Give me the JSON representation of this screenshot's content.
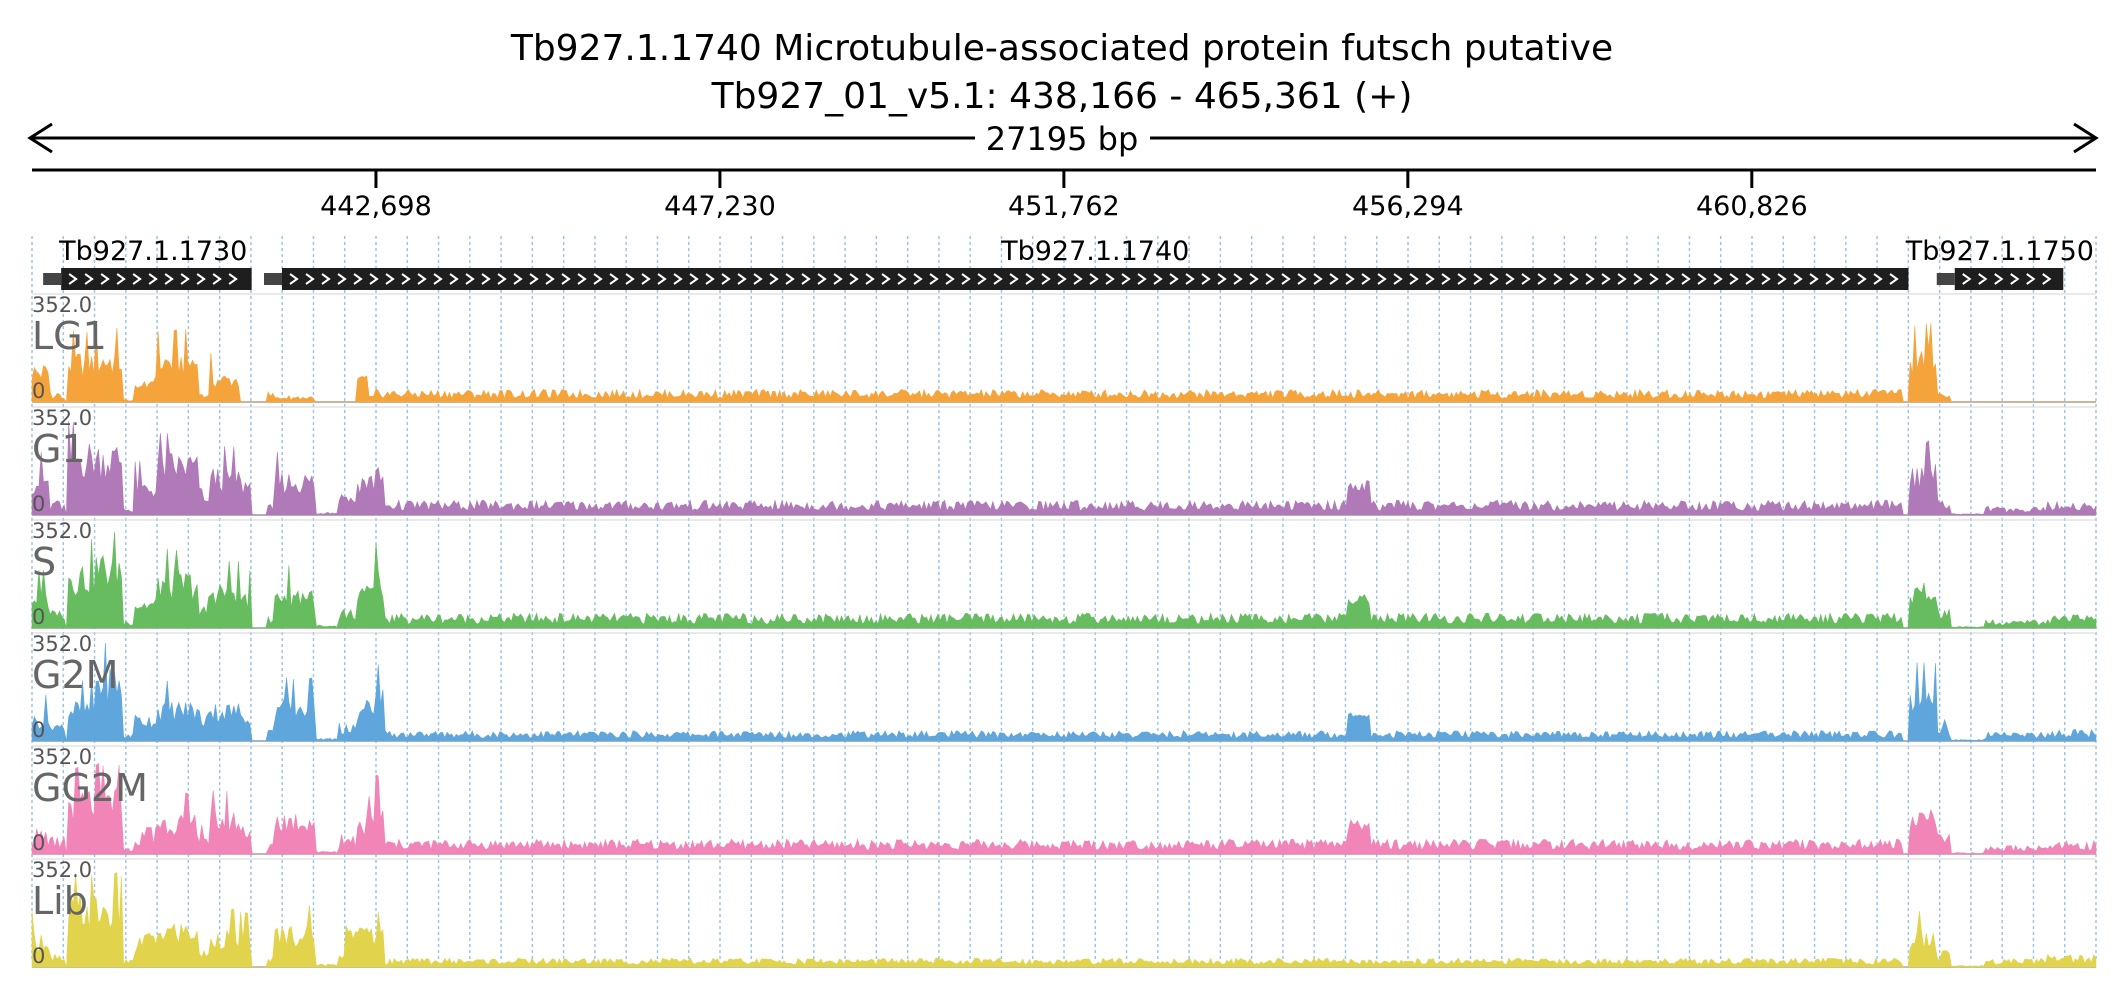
{
  "header": {
    "title": "Tb927.1.1740  Microtubule-associated protein futsch  putative",
    "location": "Tb927_01_v5.1: 438,166 - 465,361 (+)",
    "span_label": "27195 bp"
  },
  "chart_data": {
    "type": "area",
    "x_range": [
      438166,
      465361
    ],
    "strand": "+",
    "ticks": [
      {
        "value": 442698,
        "label": "442,698"
      },
      {
        "value": 447230,
        "label": "447,230"
      },
      {
        "value": 451762,
        "label": "451,762"
      },
      {
        "value": 456294,
        "label": "456,294"
      },
      {
        "value": 460826,
        "label": "460,826"
      }
    ],
    "genes": [
      {
        "name": "Tb927.1.1730",
        "start": 438550,
        "end": 441060,
        "label_anchor": "start"
      },
      {
        "name": "Tb927.1.1740",
        "start": 441460,
        "end": 462890,
        "label_anchor": "middle"
      },
      {
        "name": "Tb927.1.1750",
        "start": 463500,
        "end": 464930,
        "label_anchor": "end"
      }
    ],
    "track_scale": {
      "max_label": "352.0",
      "min_label": "0",
      "ylim": [
        0,
        352
      ]
    },
    "profile_regions": [
      {
        "start": 438166,
        "end": 438400,
        "level": 0.45
      },
      {
        "start": 438400,
        "end": 438600,
        "level": 0.12
      },
      {
        "start": 438620,
        "end": 439000,
        "level": 0.7
      },
      {
        "start": 439000,
        "end": 439350,
        "level": 0.8
      },
      {
        "start": 439350,
        "end": 439500,
        "level": 0.05
      },
      {
        "start": 439500,
        "end": 439800,
        "level": 0.35
      },
      {
        "start": 439800,
        "end": 440350,
        "level": 0.6
      },
      {
        "start": 440350,
        "end": 440500,
        "level": 0.22
      },
      {
        "start": 440500,
        "end": 440900,
        "level": 0.5
      },
      {
        "start": 440900,
        "end": 441050,
        "level": 0.4
      },
      {
        "start": 441250,
        "end": 441350,
        "level": 0.08
      },
      {
        "start": 441350,
        "end": 441900,
        "level": 0.45
      },
      {
        "start": 441900,
        "end": 442200,
        "level": 0.02
      },
      {
        "start": 442200,
        "end": 442450,
        "level": 0.15
      },
      {
        "start": 442450,
        "end": 442680,
        "level": 0.45
      },
      {
        "start": 442680,
        "end": 442800,
        "level": 0.6
      },
      {
        "start": 442800,
        "end": 462800,
        "level": 0.1
      },
      {
        "start": 462900,
        "end": 463250,
        "level": 0.55
      },
      {
        "start": 463250,
        "end": 463450,
        "level": 0.15
      },
      {
        "start": 463450,
        "end": 463900,
        "level": 0.01
      },
      {
        "start": 463900,
        "end": 464700,
        "level": 0.06
      },
      {
        "start": 464700,
        "end": 465361,
        "level": 0.09
      }
    ],
    "tracks": [
      {
        "name": "LG1",
        "color": "#F5A43C",
        "boost_start": 442300,
        "profile_scale": [
          0.9,
          0.6,
          0.75,
          0.7,
          0.5,
          0.55,
          0.9,
          0.25,
          0.6,
          0.0,
          0.9,
          0.1,
          0.0,
          0.0,
          0.1,
          0.15,
          0.85,
          1.1,
          0.4,
          0.0,
          0.0,
          0.0
        ]
      },
      {
        "name": "G1",
        "color": "#B07AB8",
        "boost_start": 455500,
        "profile_scale": [
          1.0,
          1.0,
          1.1,
          0.95,
          1.0,
          1.0,
          1.1,
          1.0,
          1.0,
          1.0,
          1.0,
          1.0,
          1.0,
          1.0,
          1.0,
          1.0,
          1.0,
          1.0,
          1.0,
          1.0,
          1.0,
          1.0
        ]
      },
      {
        "name": "S",
        "color": "#66BC5E",
        "boost_start": 455500,
        "profile_scale": [
          0.9,
          1.0,
          1.0,
          1.0,
          1.0,
          0.9,
          1.0,
          1.0,
          1.0,
          1.0,
          1.0,
          1.0,
          1.0,
          1.0,
          1.0,
          1.1,
          1.0,
          0.9,
          1.0,
          1.0,
          1.0,
          1.0
        ]
      },
      {
        "name": "G2M",
        "color": "#5EA6DC",
        "boost_start": 455500,
        "profile_scale": [
          0.6,
          1.0,
          0.6,
          1.0,
          1.0,
          0.8,
          0.7,
          1.0,
          0.8,
          0.9,
          1.0,
          1.0,
          1.0,
          1.0,
          1.0,
          1.0,
          0.7,
          1.1,
          1.0,
          1.0,
          1.0,
          0.9
        ]
      },
      {
        "name": "GG2M",
        "color": "#F185B7",
        "boost_start": 455500,
        "profile_scale": [
          0.4,
          1.0,
          1.0,
          0.9,
          1.0,
          0.6,
          0.7,
          1.0,
          0.9,
          0.8,
          1.0,
          1.0,
          1.0,
          0.9,
          0.9,
          1.0,
          1.0,
          0.9,
          1.0,
          1.0,
          1.0,
          1.0
        ]
      },
      {
        "name": "Lib",
        "color": "#E1D44C",
        "boost_start": 442300,
        "profile_scale": [
          0.8,
          1.0,
          1.1,
          0.95,
          1.0,
          0.7,
          0.8,
          1.0,
          0.8,
          0.9,
          1.0,
          1.0,
          1.0,
          1.0,
          1.0,
          1.0,
          0.6,
          0.7,
          1.0,
          1.0,
          1.0,
          1.0
        ]
      }
    ]
  }
}
